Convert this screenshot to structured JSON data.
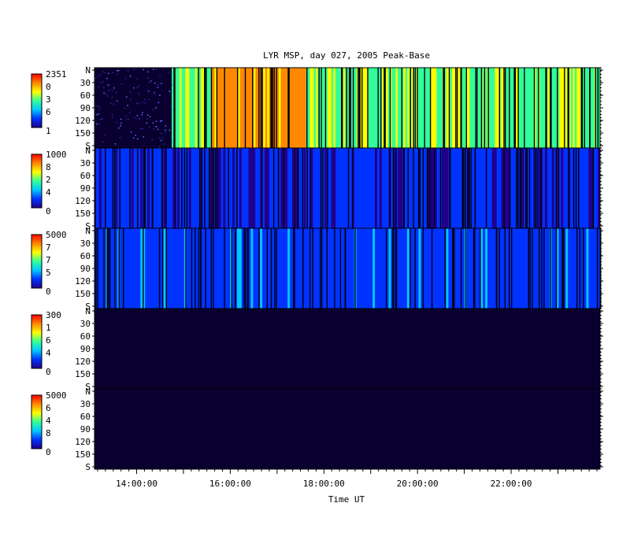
{
  "chart_data": {
    "type": "heatmap",
    "title": "LYR MSP, day 027, 2005 Peak-Base",
    "xlabel": "Time UT",
    "x_ticks": [
      "14:00:00",
      "16:00:00",
      "18:00:00",
      "20:00:00",
      "22:00:00"
    ],
    "x_range_hours": [
      13.1,
      23.9
    ],
    "panel_y_ticks": [
      "N",
      "30",
      "60",
      "90",
      "120",
      "150",
      "S"
    ],
    "colormap": [
      "#20008a",
      "#0033ff",
      "#00c8ff",
      "#33ff99",
      "#ffff00",
      "#ff8800",
      "#ff0000"
    ],
    "panels": [
      {
        "colorbar_labels": [
          "2351",
          "0",
          "3",
          "6",
          "1"
        ],
        "background": "#0a0030",
        "data_start_hour": 14.75,
        "mean_level": 0.55,
        "hot_band_hours": [
          15.6,
          17.6
        ]
      },
      {
        "colorbar_labels": [
          "1000",
          "8",
          "2",
          "4",
          "0"
        ],
        "background": "#1a1a9a",
        "data_start_hour": 13.1,
        "mean_level": 0.12,
        "hot_band_hours": []
      },
      {
        "colorbar_labels": [
          "5000",
          "7",
          "7",
          "5",
          "0"
        ],
        "background": "#2a2aa8",
        "data_start_hour": 13.1,
        "mean_level": 0.18,
        "hot_band_hours": []
      },
      {
        "colorbar_labels": [
          "300",
          "1",
          "6",
          "4",
          "0"
        ],
        "background": "#0a0030",
        "data_start_hour": 13.1,
        "mean_level": 0.0,
        "hot_band_hours": []
      },
      {
        "colorbar_labels": [
          "5000",
          "6",
          "4",
          "8",
          "0"
        ],
        "background": "#0a0030",
        "data_start_hour": 13.1,
        "mean_level": 0.0,
        "hot_band_hours": []
      }
    ]
  }
}
